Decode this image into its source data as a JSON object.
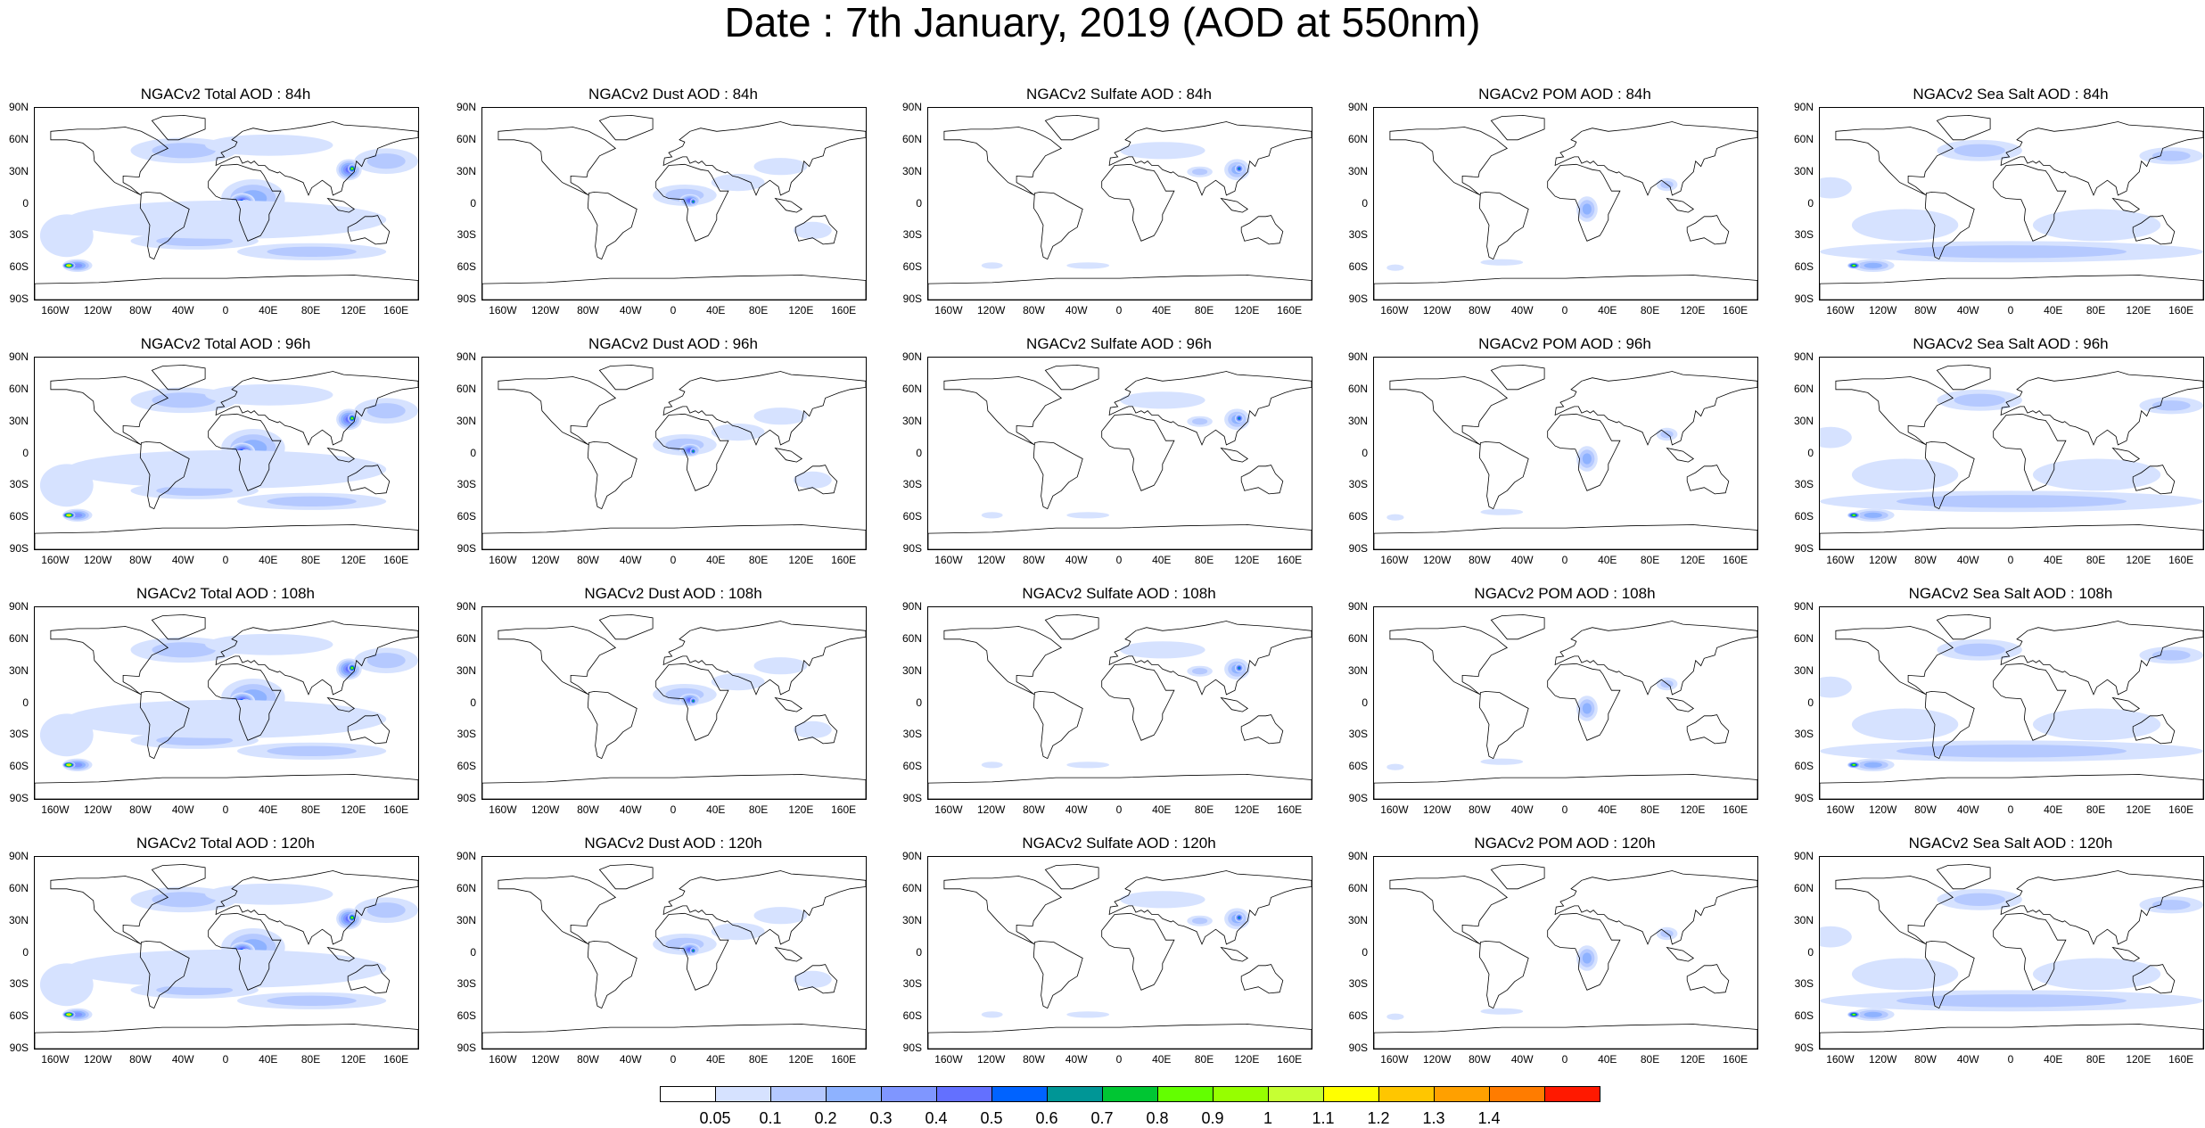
{
  "title": "Date : 7th January, 2019 (AOD at 550nm)",
  "panels": [
    {
      "title": "NGACv2 Total AOD : 84h",
      "field": "total",
      "hour": "84h"
    },
    {
      "title": "NGACv2 Dust AOD : 84h",
      "field": "dust",
      "hour": "84h"
    },
    {
      "title": "NGACv2 Sulfate AOD : 84h",
      "field": "sulfate",
      "hour": "84h"
    },
    {
      "title": "NGACv2 POM AOD : 84h",
      "field": "pom",
      "hour": "84h"
    },
    {
      "title": "NGACv2 Sea Salt AOD : 84h",
      "field": "seasalt",
      "hour": "84h"
    },
    {
      "title": "NGACv2 Total AOD : 96h",
      "field": "total",
      "hour": "96h"
    },
    {
      "title": "NGACv2 Dust AOD : 96h",
      "field": "dust",
      "hour": "96h"
    },
    {
      "title": "NGACv2 Sulfate AOD : 96h",
      "field": "sulfate",
      "hour": "96h"
    },
    {
      "title": "NGACv2 POM AOD : 96h",
      "field": "pom",
      "hour": "96h"
    },
    {
      "title": "NGACv2 Sea Salt AOD : 96h",
      "field": "seasalt",
      "hour": "96h"
    },
    {
      "title": "NGACv2 Total AOD : 108h",
      "field": "total",
      "hour": "108h"
    },
    {
      "title": "NGACv2 Dust AOD : 108h",
      "field": "dust",
      "hour": "108h"
    },
    {
      "title": "NGACv2 Sulfate AOD : 108h",
      "field": "sulfate",
      "hour": "108h"
    },
    {
      "title": "NGACv2 POM AOD : 108h",
      "field": "pom",
      "hour": "108h"
    },
    {
      "title": "NGACv2 Sea Salt AOD : 108h",
      "field": "seasalt",
      "hour": "108h"
    },
    {
      "title": "NGACv2 Total AOD : 120h",
      "field": "total",
      "hour": "120h"
    },
    {
      "title": "NGACv2 Dust AOD : 120h",
      "field": "dust",
      "hour": "120h"
    },
    {
      "title": "NGACv2 Sulfate AOD : 120h",
      "field": "sulfate",
      "hour": "120h"
    },
    {
      "title": "NGACv2 POM AOD : 120h",
      "field": "pom",
      "hour": "120h"
    },
    {
      "title": "NGACv2 Sea Salt  AOD : 120h",
      "field": "seasalt",
      "hour": "120h"
    }
  ],
  "lat_ticks": [
    "90N",
    "60N",
    "30N",
    "0",
    "30S",
    "60S",
    "90S"
  ],
  "lon_ticks": [
    "160W",
    "120W",
    "80W",
    "40W",
    "0",
    "40E",
    "80E",
    "120E",
    "160E"
  ],
  "colorbar": {
    "labels": [
      "0.05",
      "0.1",
      "0.2",
      "0.3",
      "0.4",
      "0.5",
      "0.6",
      "0.7",
      "0.8",
      "0.9",
      "1",
      "1.1",
      "1.2",
      "1.3",
      "1.4"
    ],
    "colors": [
      "#ffffff",
      "#d6e2ff",
      "#b5c9ff",
      "#8eb2ff",
      "#7f96ff",
      "#6370ff",
      "#0063ff",
      "#009696",
      "#00c633",
      "#63ff00",
      "#96ff00",
      "#c6ff33",
      "#ffff00",
      "#ffc600",
      "#ffa000",
      "#ff7c00",
      "#ff1900"
    ]
  }
}
